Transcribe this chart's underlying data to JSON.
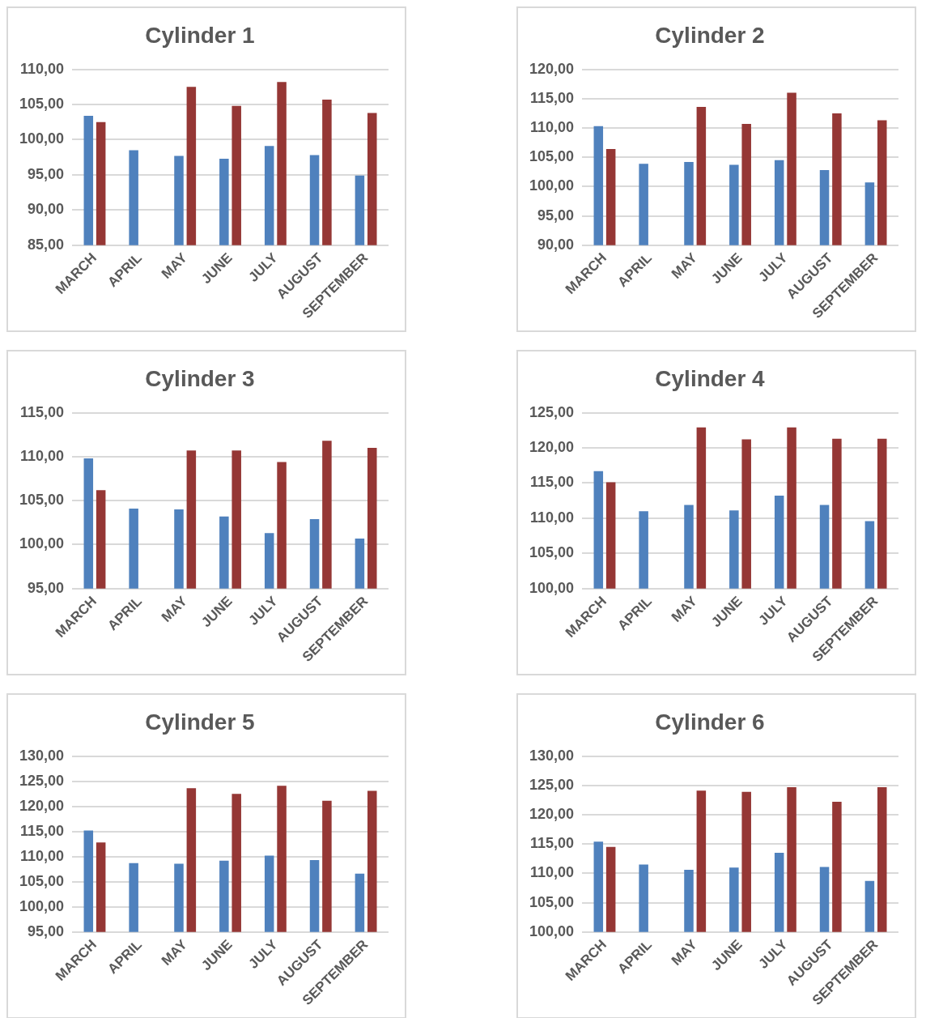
{
  "chart_data": [
    {
      "type": "bar",
      "title": "Cylinder 1",
      "categories": [
        "MARCH",
        "APRIL",
        "MAY",
        "JUNE",
        "JULY",
        "AUGUST",
        "SEPTEMBER"
      ],
      "series": [
        {
          "color": "#4f81bd",
          "values": [
            103.4,
            98.5,
            97.7,
            97.3,
            99.1,
            97.8,
            94.9
          ]
        },
        {
          "color": "#953735",
          "values": [
            102.5,
            null,
            107.5,
            104.8,
            108.2,
            105.7,
            103.8
          ]
        }
      ],
      "ylim": [
        85,
        110
      ],
      "yticks": [
        {
          "value": 85,
          "label": "85,00"
        },
        {
          "value": 90,
          "label": "90,00"
        },
        {
          "value": 95,
          "label": "95,00"
        },
        {
          "value": 100,
          "label": "100,00"
        },
        {
          "value": 105,
          "label": "105,00"
        },
        {
          "value": 110,
          "label": "110,00"
        }
      ],
      "grid": "y",
      "legend": false
    },
    {
      "type": "bar",
      "title": "Cylinder 2",
      "categories": [
        "MARCH",
        "APRIL",
        "MAY",
        "JUNE",
        "JULY",
        "AUGUST",
        "SEPTEMBER"
      ],
      "series": [
        {
          "color": "#4f81bd",
          "values": [
            110.3,
            103.9,
            104.2,
            103.7,
            104.5,
            102.8,
            100.7
          ]
        },
        {
          "color": "#953735",
          "values": [
            106.4,
            null,
            113.6,
            110.7,
            116.0,
            112.5,
            111.3
          ]
        }
      ],
      "ylim": [
        90,
        120
      ],
      "yticks": [
        {
          "value": 90,
          "label": "90,00"
        },
        {
          "value": 95,
          "label": "95,00"
        },
        {
          "value": 100,
          "label": "100,00"
        },
        {
          "value": 105,
          "label": "105,00"
        },
        {
          "value": 110,
          "label": "110,00"
        },
        {
          "value": 115,
          "label": "115,00"
        },
        {
          "value": 120,
          "label": "120,00"
        }
      ],
      "grid": "y",
      "legend": false
    },
    {
      "type": "bar",
      "title": "Cylinder 3",
      "categories": [
        "MARCH",
        "APRIL",
        "MAY",
        "JUNE",
        "JULY",
        "AUGUST",
        "SEPTEMBER"
      ],
      "series": [
        {
          "color": "#4f81bd",
          "values": [
            109.8,
            104.1,
            104.0,
            103.2,
            101.3,
            102.9,
            100.7
          ]
        },
        {
          "color": "#953735",
          "values": [
            106.2,
            null,
            110.7,
            110.7,
            109.4,
            111.8,
            111.0
          ]
        }
      ],
      "ylim": [
        95,
        115
      ],
      "yticks": [
        {
          "value": 95,
          "label": "95,00"
        },
        {
          "value": 100,
          "label": "100,00"
        },
        {
          "value": 105,
          "label": "105,00"
        },
        {
          "value": 110,
          "label": "110,00"
        },
        {
          "value": 115,
          "label": "115,00"
        }
      ],
      "grid": "y",
      "legend": false
    },
    {
      "type": "bar",
      "title": "Cylinder 4",
      "categories": [
        "MARCH",
        "APRIL",
        "MAY",
        "JUNE",
        "JULY",
        "AUGUST",
        "SEPTEMBER"
      ],
      "series": [
        {
          "color": "#4f81bd",
          "values": [
            116.7,
            111.0,
            111.9,
            111.1,
            113.2,
            111.9,
            109.6
          ]
        },
        {
          "color": "#953735",
          "values": [
            115.1,
            null,
            122.9,
            121.2,
            122.9,
            121.3,
            121.3
          ]
        }
      ],
      "ylim": [
        100,
        125
      ],
      "yticks": [
        {
          "value": 100,
          "label": "100,00"
        },
        {
          "value": 105,
          "label": "105,00"
        },
        {
          "value": 110,
          "label": "110,00"
        },
        {
          "value": 115,
          "label": "115,00"
        },
        {
          "value": 120,
          "label": "120,00"
        },
        {
          "value": 125,
          "label": "125,00"
        }
      ],
      "grid": "y",
      "legend": false
    },
    {
      "type": "bar",
      "title": "Cylinder 5",
      "categories": [
        "MARCH",
        "APRIL",
        "MAY",
        "JUNE",
        "JULY",
        "AUGUST",
        "SEPTEMBER"
      ],
      "series": [
        {
          "color": "#4f81bd",
          "values": [
            115.2,
            108.7,
            108.6,
            109.2,
            110.2,
            109.3,
            106.6
          ]
        },
        {
          "color": "#953735",
          "values": [
            112.8,
            null,
            123.6,
            122.5,
            124.1,
            121.1,
            123.1
          ]
        }
      ],
      "ylim": [
        95,
        130
      ],
      "yticks": [
        {
          "value": 95,
          "label": "95,00"
        },
        {
          "value": 100,
          "label": "100,00"
        },
        {
          "value": 105,
          "label": "105,00"
        },
        {
          "value": 110,
          "label": "110,00"
        },
        {
          "value": 115,
          "label": "115,00"
        },
        {
          "value": 120,
          "label": "120,00"
        },
        {
          "value": 125,
          "label": "125,00"
        },
        {
          "value": 130,
          "label": "130,00"
        }
      ],
      "grid": "y",
      "legend": false
    },
    {
      "type": "bar",
      "title": "Cylinder 6",
      "categories": [
        "MARCH",
        "APRIL",
        "MAY",
        "JUNE",
        "JULY",
        "AUGUST",
        "SEPTEMBER"
      ],
      "series": [
        {
          "color": "#4f81bd",
          "values": [
            115.4,
            111.5,
            110.6,
            111.0,
            113.5,
            111.1,
            108.7
          ]
        },
        {
          "color": "#953735",
          "values": [
            114.5,
            null,
            124.1,
            123.9,
            124.7,
            122.2,
            124.7
          ]
        }
      ],
      "ylim": [
        100,
        130
      ],
      "yticks": [
        {
          "value": 100,
          "label": "100,00"
        },
        {
          "value": 105,
          "label": "105,00"
        },
        {
          "value": 110,
          "label": "110,00"
        },
        {
          "value": 115,
          "label": "115,00"
        },
        {
          "value": 120,
          "label": "120,00"
        },
        {
          "value": 125,
          "label": "125,00"
        },
        {
          "value": 130,
          "label": "130,00"
        }
      ],
      "grid": "y",
      "legend": false
    }
  ]
}
